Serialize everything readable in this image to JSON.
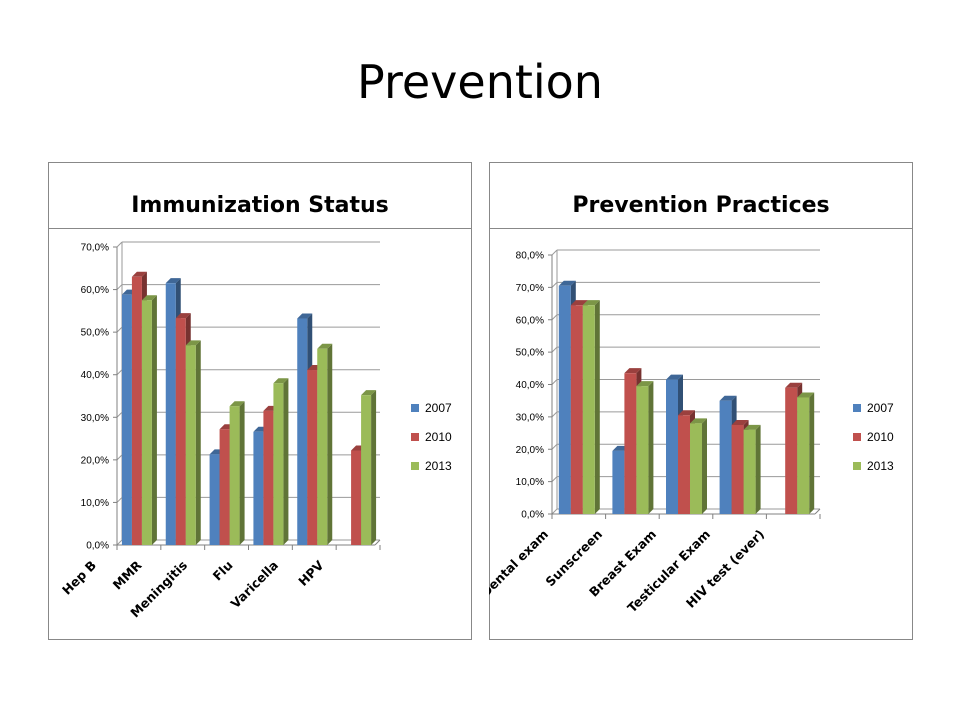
{
  "slide": {
    "title": "Prevention"
  },
  "chart_data": [
    {
      "type": "bar",
      "title": "Immunization Status",
      "categories": [
        "Hep B",
        "MMR",
        "Meningitis",
        "Flu",
        "Varicella",
        "HPV"
      ],
      "series": [
        {
          "name": "2007",
          "values": [
            58.8,
            61.5,
            21.3,
            26.6,
            53.2,
            null
          ]
        },
        {
          "name": "2010",
          "values": [
            63.0,
            53.3,
            27.2,
            31.5,
            41.1,
            22.2
          ]
        },
        {
          "name": "2013",
          "values": [
            57.5,
            46.9,
            32.6,
            38.0,
            46.1,
            35.2
          ]
        }
      ],
      "ylim": [
        0,
        70
      ],
      "yticks": [
        "0,0%",
        "10,0%",
        "20,0%",
        "30,0%",
        "40,0%",
        "50,0%",
        "60,0%",
        "70,0%"
      ],
      "colors": [
        "#4f81bd",
        "#c0504d",
        "#9bbb59"
      ],
      "grid": true,
      "legend": "right"
    },
    {
      "type": "bar",
      "title": "Prevention Practices",
      "categories": [
        "Dental exam",
        "Sunscreen",
        "Breast Exam",
        "Testicular Exam",
        "HIV test (ever)"
      ],
      "series": [
        {
          "name": "2007",
          "values": [
            70.5,
            19.5,
            41.5,
            35.0,
            null
          ]
        },
        {
          "name": "2010",
          "values": [
            64.5,
            43.5,
            30.5,
            27.5,
            39.0
          ]
        },
        {
          "name": "2013",
          "values": [
            64.5,
            39.5,
            28.0,
            26.0,
            36.0
          ]
        }
      ],
      "ylim": [
        0,
        80
      ],
      "yticks": [
        "0,0%",
        "10,0%",
        "20,0%",
        "30,0%",
        "40,0%",
        "50,0%",
        "60,0%",
        "70,0%",
        "80,0%"
      ],
      "colors": [
        "#4f81bd",
        "#c0504d",
        "#9bbb59"
      ],
      "grid": true,
      "legend": "right"
    }
  ]
}
